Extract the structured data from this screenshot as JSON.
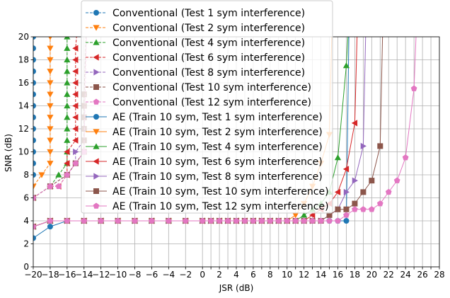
{
  "chart_data": {
    "type": "line",
    "title": "",
    "xlabel": "JSR (dB)",
    "ylabel": "SNR (dB)",
    "xlim": [
      -20,
      28
    ],
    "ylim": [
      0,
      20
    ],
    "xticks": [
      -20,
      -18,
      -16,
      -14,
      -12,
      -10,
      -8,
      -6,
      -4,
      -2,
      0,
      1,
      2,
      3,
      4,
      5,
      6,
      7,
      8,
      9,
      10,
      11,
      12,
      13,
      14,
      15,
      16,
      17,
      18,
      19,
      20,
      21,
      22,
      23,
      24,
      25,
      26,
      27,
      28
    ],
    "xtick_labels": [
      "−20",
      "−18",
      "−16",
      "−14",
      "−12",
      "−10",
      "−8",
      "−6",
      "−4",
      "−2",
      "0",
      "",
      "2",
      "",
      "4",
      "",
      "6",
      "",
      "8",
      "",
      "10",
      "",
      "12",
      "",
      "14",
      "",
      "16",
      "",
      "18",
      "",
      "20",
      "",
      "22",
      "",
      "24",
      "",
      "26",
      "",
      "28"
    ],
    "yticks": [
      0,
      2,
      4,
      6,
      8,
      10,
      12,
      14,
      16,
      18,
      20
    ],
    "grid": true,
    "legend_position": "top-center",
    "series": [
      {
        "name": "Conventional (Test 1 sym interference)",
        "color": "#1f77b4",
        "marker": "circle",
        "linestyle": "dashed",
        "x": [
          -20,
          -20,
          -20,
          -20,
          -20,
          -20,
          -20,
          -20,
          -20,
          -20,
          -20,
          -20,
          -20
        ],
        "y": [
          8,
          9,
          10,
          11,
          12,
          13,
          14,
          15,
          16,
          17,
          18,
          19,
          20
        ]
      },
      {
        "name": "Conventional (Test 2 sym interference)",
        "color": "#ff7f0e",
        "marker": "triangle-down",
        "linestyle": "dashed",
        "x": [
          -20,
          -20,
          -19,
          -18,
          -18,
          -18,
          -18,
          -18,
          -18,
          -18,
          -18,
          -18,
          -18,
          -18,
          -18
        ],
        "y": [
          6,
          7,
          8,
          9,
          10,
          11,
          12,
          13,
          14,
          15,
          16,
          17,
          18,
          19,
          20
        ]
      },
      {
        "name": "Conventional (Test 4 sym interference)",
        "color": "#2ca02c",
        "marker": "triangle-up",
        "linestyle": "dashed",
        "x": [
          -20,
          -18,
          -17,
          -16,
          -16,
          -16,
          -16,
          -16,
          -16,
          -16,
          -16,
          -16,
          -16,
          -16,
          -16
        ],
        "y": [
          6,
          7,
          8,
          9,
          10,
          11,
          12,
          13,
          14,
          15,
          16,
          17,
          18,
          19,
          20
        ]
      },
      {
        "name": "Conventional (Test 6 sym interference)",
        "color": "#d62728",
        "marker": "triangle-left",
        "linestyle": "dashed",
        "x": [
          -20,
          -18,
          -17,
          -16,
          -16,
          -16,
          -15,
          -15,
          -15,
          -15,
          -15,
          -15,
          -15,
          -15,
          -15
        ],
        "y": [
          6,
          7,
          7,
          8,
          9,
          10,
          11,
          12,
          13,
          14,
          15,
          16,
          17,
          18,
          19
        ]
      },
      {
        "name": "Conventional (Test 8 sym interference)",
        "color": "#9467bd",
        "marker": "triangle-right",
        "linestyle": "dashed",
        "x": [
          -20,
          -18,
          -16,
          -15,
          -15,
          -14,
          -14,
          -14,
          -14,
          -14
        ],
        "y": [
          6,
          7,
          8,
          9,
          10,
          11,
          12,
          13,
          14,
          15
        ]
      },
      {
        "name": "Conventional (Test 10 sym interference)",
        "color": "#8c564b",
        "marker": "square",
        "linestyle": "dashed",
        "x": [
          -20,
          -18,
          -16,
          -15,
          -14,
          -14,
          -14,
          -14,
          -14,
          -14
        ],
        "y": [
          6,
          7,
          8,
          9,
          10,
          11,
          12,
          13,
          14,
          15
        ]
      },
      {
        "name": "Conventional (Test 12 sym interference)",
        "color": "#e377c2",
        "marker": "pentagon",
        "linestyle": "dashed",
        "x": [
          -20,
          -18,
          -17,
          -16,
          -15,
          -14
        ],
        "y": [
          6,
          7,
          7,
          8,
          9,
          10
        ]
      },
      {
        "name": "AE (Train 10 sym, Test 1 sym interference)",
        "color": "#1f77b4",
        "marker": "circle",
        "linestyle": "solid",
        "x": [
          -20,
          -18,
          -16,
          -14,
          -12,
          -10,
          -8,
          -6,
          -4,
          -2,
          0,
          1,
          2,
          3,
          4,
          5,
          6,
          7,
          8,
          9,
          10,
          11,
          12,
          13,
          14,
          15,
          16,
          17
        ],
        "y": [
          2.5,
          3.5,
          4,
          4,
          4,
          4,
          4,
          4,
          4,
          4,
          4,
          4,
          4,
          4,
          4,
          4,
          4,
          4,
          4,
          4,
          4,
          4,
          4,
          4,
          4,
          4,
          4,
          4
        ]
      },
      {
        "name": "AE (Train 10 sym, Test 2 sym interference)",
        "color": "#ff7f0e",
        "marker": "triangle-down",
        "linestyle": "solid",
        "x": [
          -20,
          -18,
          -16,
          -14,
          -12,
          -10,
          -8,
          -6,
          -4,
          -2,
          0,
          1,
          2,
          3,
          4,
          5,
          6,
          7,
          8,
          9,
          10,
          11,
          12,
          13,
          14,
          15
        ],
        "y": [
          3.5,
          4,
          4,
          4,
          4,
          4,
          4,
          4,
          4,
          4,
          4,
          4,
          4,
          4,
          4,
          4,
          4,
          4,
          4,
          4,
          4,
          4.5,
          5.5,
          7,
          9,
          11.5
        ]
      },
      {
        "name": "AE (Train 10 sym, Test 4 sym interference)",
        "color": "#2ca02c",
        "marker": "triangle-up",
        "linestyle": "solid",
        "x": [
          -20,
          -18,
          -16,
          -14,
          -12,
          -10,
          -8,
          -6,
          -4,
          -2,
          0,
          1,
          2,
          3,
          4,
          5,
          6,
          7,
          8,
          9,
          10,
          11,
          12,
          13,
          14,
          15,
          16,
          17
        ],
        "y": [
          3.5,
          4,
          4,
          4,
          4,
          4,
          4,
          4,
          4,
          4,
          4,
          4,
          4,
          4,
          4,
          4,
          4,
          4,
          4,
          4,
          4,
          4,
          4.5,
          5,
          5.5,
          6.5,
          9.5,
          17.5
        ]
      },
      {
        "name": "AE (Train 10 sym, Test 6 sym interference)",
        "color": "#d62728",
        "marker": "triangle-left",
        "linestyle": "solid",
        "x": [
          -20,
          -18,
          -16,
          -14,
          -12,
          -10,
          -8,
          -6,
          -4,
          -2,
          0,
          1,
          2,
          3,
          4,
          5,
          6,
          7,
          8,
          9,
          10,
          11,
          12,
          13,
          14,
          15,
          16,
          17,
          18
        ],
        "y": [
          3.5,
          4,
          4,
          4,
          4,
          4,
          4,
          4,
          4,
          4,
          4,
          4,
          4,
          4,
          4,
          4,
          4,
          4,
          4,
          4,
          4,
          4,
          4,
          4.5,
          5,
          5.5,
          6.5,
          8.5,
          12.5
        ]
      },
      {
        "name": "AE (Train 10 sym, Test 8 sym interference)",
        "color": "#9467bd",
        "marker": "triangle-right",
        "linestyle": "solid",
        "x": [
          -20,
          -18,
          -16,
          -14,
          -12,
          -10,
          -8,
          -6,
          -4,
          -2,
          0,
          1,
          2,
          3,
          4,
          5,
          6,
          7,
          8,
          9,
          10,
          11,
          12,
          13,
          14,
          15,
          16,
          17,
          18,
          19
        ],
        "y": [
          3.5,
          4,
          4,
          4,
          4,
          4,
          4,
          4,
          4,
          4,
          4,
          4,
          4,
          4,
          4,
          4,
          4,
          4,
          4,
          4,
          4,
          4,
          4,
          4,
          4,
          4.5,
          5,
          6.5,
          7.5,
          10.5
        ]
      },
      {
        "name": "AE (Train 10 sym, Test 10 sym interference)",
        "color": "#8c564b",
        "marker": "square",
        "linestyle": "solid",
        "x": [
          -20,
          -18,
          -16,
          -14,
          -12,
          -10,
          -8,
          -6,
          -4,
          -2,
          0,
          1,
          2,
          3,
          4,
          5,
          6,
          7,
          8,
          9,
          10,
          11,
          12,
          13,
          14,
          15,
          16,
          17,
          18,
          19,
          20,
          21
        ],
        "y": [
          3.5,
          4,
          4,
          4,
          4,
          4,
          4,
          4,
          4,
          4,
          4,
          4,
          4,
          4,
          4,
          4,
          4,
          4,
          4,
          4,
          4,
          4,
          4,
          4,
          4,
          4.5,
          5,
          5,
          5.5,
          6.5,
          7.5,
          10.5
        ]
      },
      {
        "name": "AE (Train 10 sym, Test 12 sym interference)",
        "color": "#e377c2",
        "marker": "pentagon",
        "linestyle": "solid",
        "x": [
          -20,
          -18,
          -16,
          -14,
          -12,
          -10,
          -8,
          -6,
          -4,
          -2,
          0,
          1,
          2,
          3,
          4,
          5,
          6,
          7,
          8,
          9,
          10,
          11,
          12,
          13,
          14,
          15,
          16,
          17,
          18,
          19,
          20,
          21,
          22,
          23,
          24,
          25
        ],
        "y": [
          3.5,
          4,
          4,
          4,
          4,
          4,
          4,
          4,
          4,
          4,
          4,
          4,
          4,
          4,
          4,
          4,
          4,
          4,
          4,
          4,
          4,
          4,
          4,
          4,
          4,
          4,
          4,
          4.5,
          5,
          5,
          5,
          5.5,
          6.5,
          7.5,
          9.5,
          15.5
        ]
      }
    ]
  }
}
